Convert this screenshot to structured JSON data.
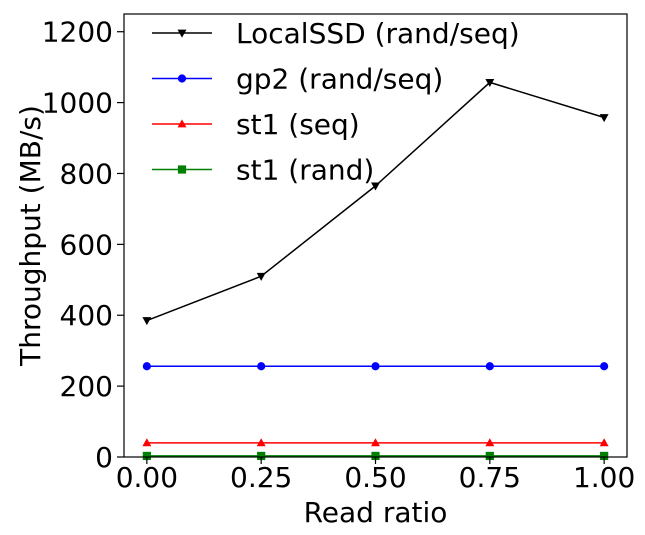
{
  "chart_data": {
    "type": "line",
    "title": "",
    "xlabel": "Read ratio",
    "ylabel": "Throughput (MB/s)",
    "xlim": [
      -0.05,
      1.05
    ],
    "ylim": [
      0,
      1250
    ],
    "x": [
      0.0,
      0.25,
      0.5,
      0.75,
      1.0
    ],
    "xticks": [
      0.0,
      0.25,
      0.5,
      0.75,
      1.0
    ],
    "xtick_labels": [
      "0.00",
      "0.25",
      "0.50",
      "0.75",
      "1.00"
    ],
    "yticks": [
      0,
      200,
      400,
      600,
      800,
      1000,
      1200
    ],
    "ytick_labels": [
      "0",
      "200",
      "400",
      "600",
      "800",
      "1000",
      "1200"
    ],
    "grid": false,
    "legend_position": "top-center",
    "series": [
      {
        "name": "LocalSSD (rand/seq)",
        "values": [
          385,
          510,
          765,
          1057,
          958
        ],
        "color": "#000000",
        "marker": "triangle-down"
      },
      {
        "name": "gp2 (rand/seq)",
        "values": [
          256,
          256,
          256,
          256,
          256
        ],
        "color": "#0000ff",
        "marker": "circle"
      },
      {
        "name": "st1 (seq)",
        "values": [
          40,
          40,
          40,
          40,
          40
        ],
        "color": "#ff0000",
        "marker": "triangle-up"
      },
      {
        "name": "st1 (rand)",
        "values": [
          3,
          3,
          3,
          3,
          3
        ],
        "color": "#008000",
        "marker": "square"
      }
    ]
  }
}
